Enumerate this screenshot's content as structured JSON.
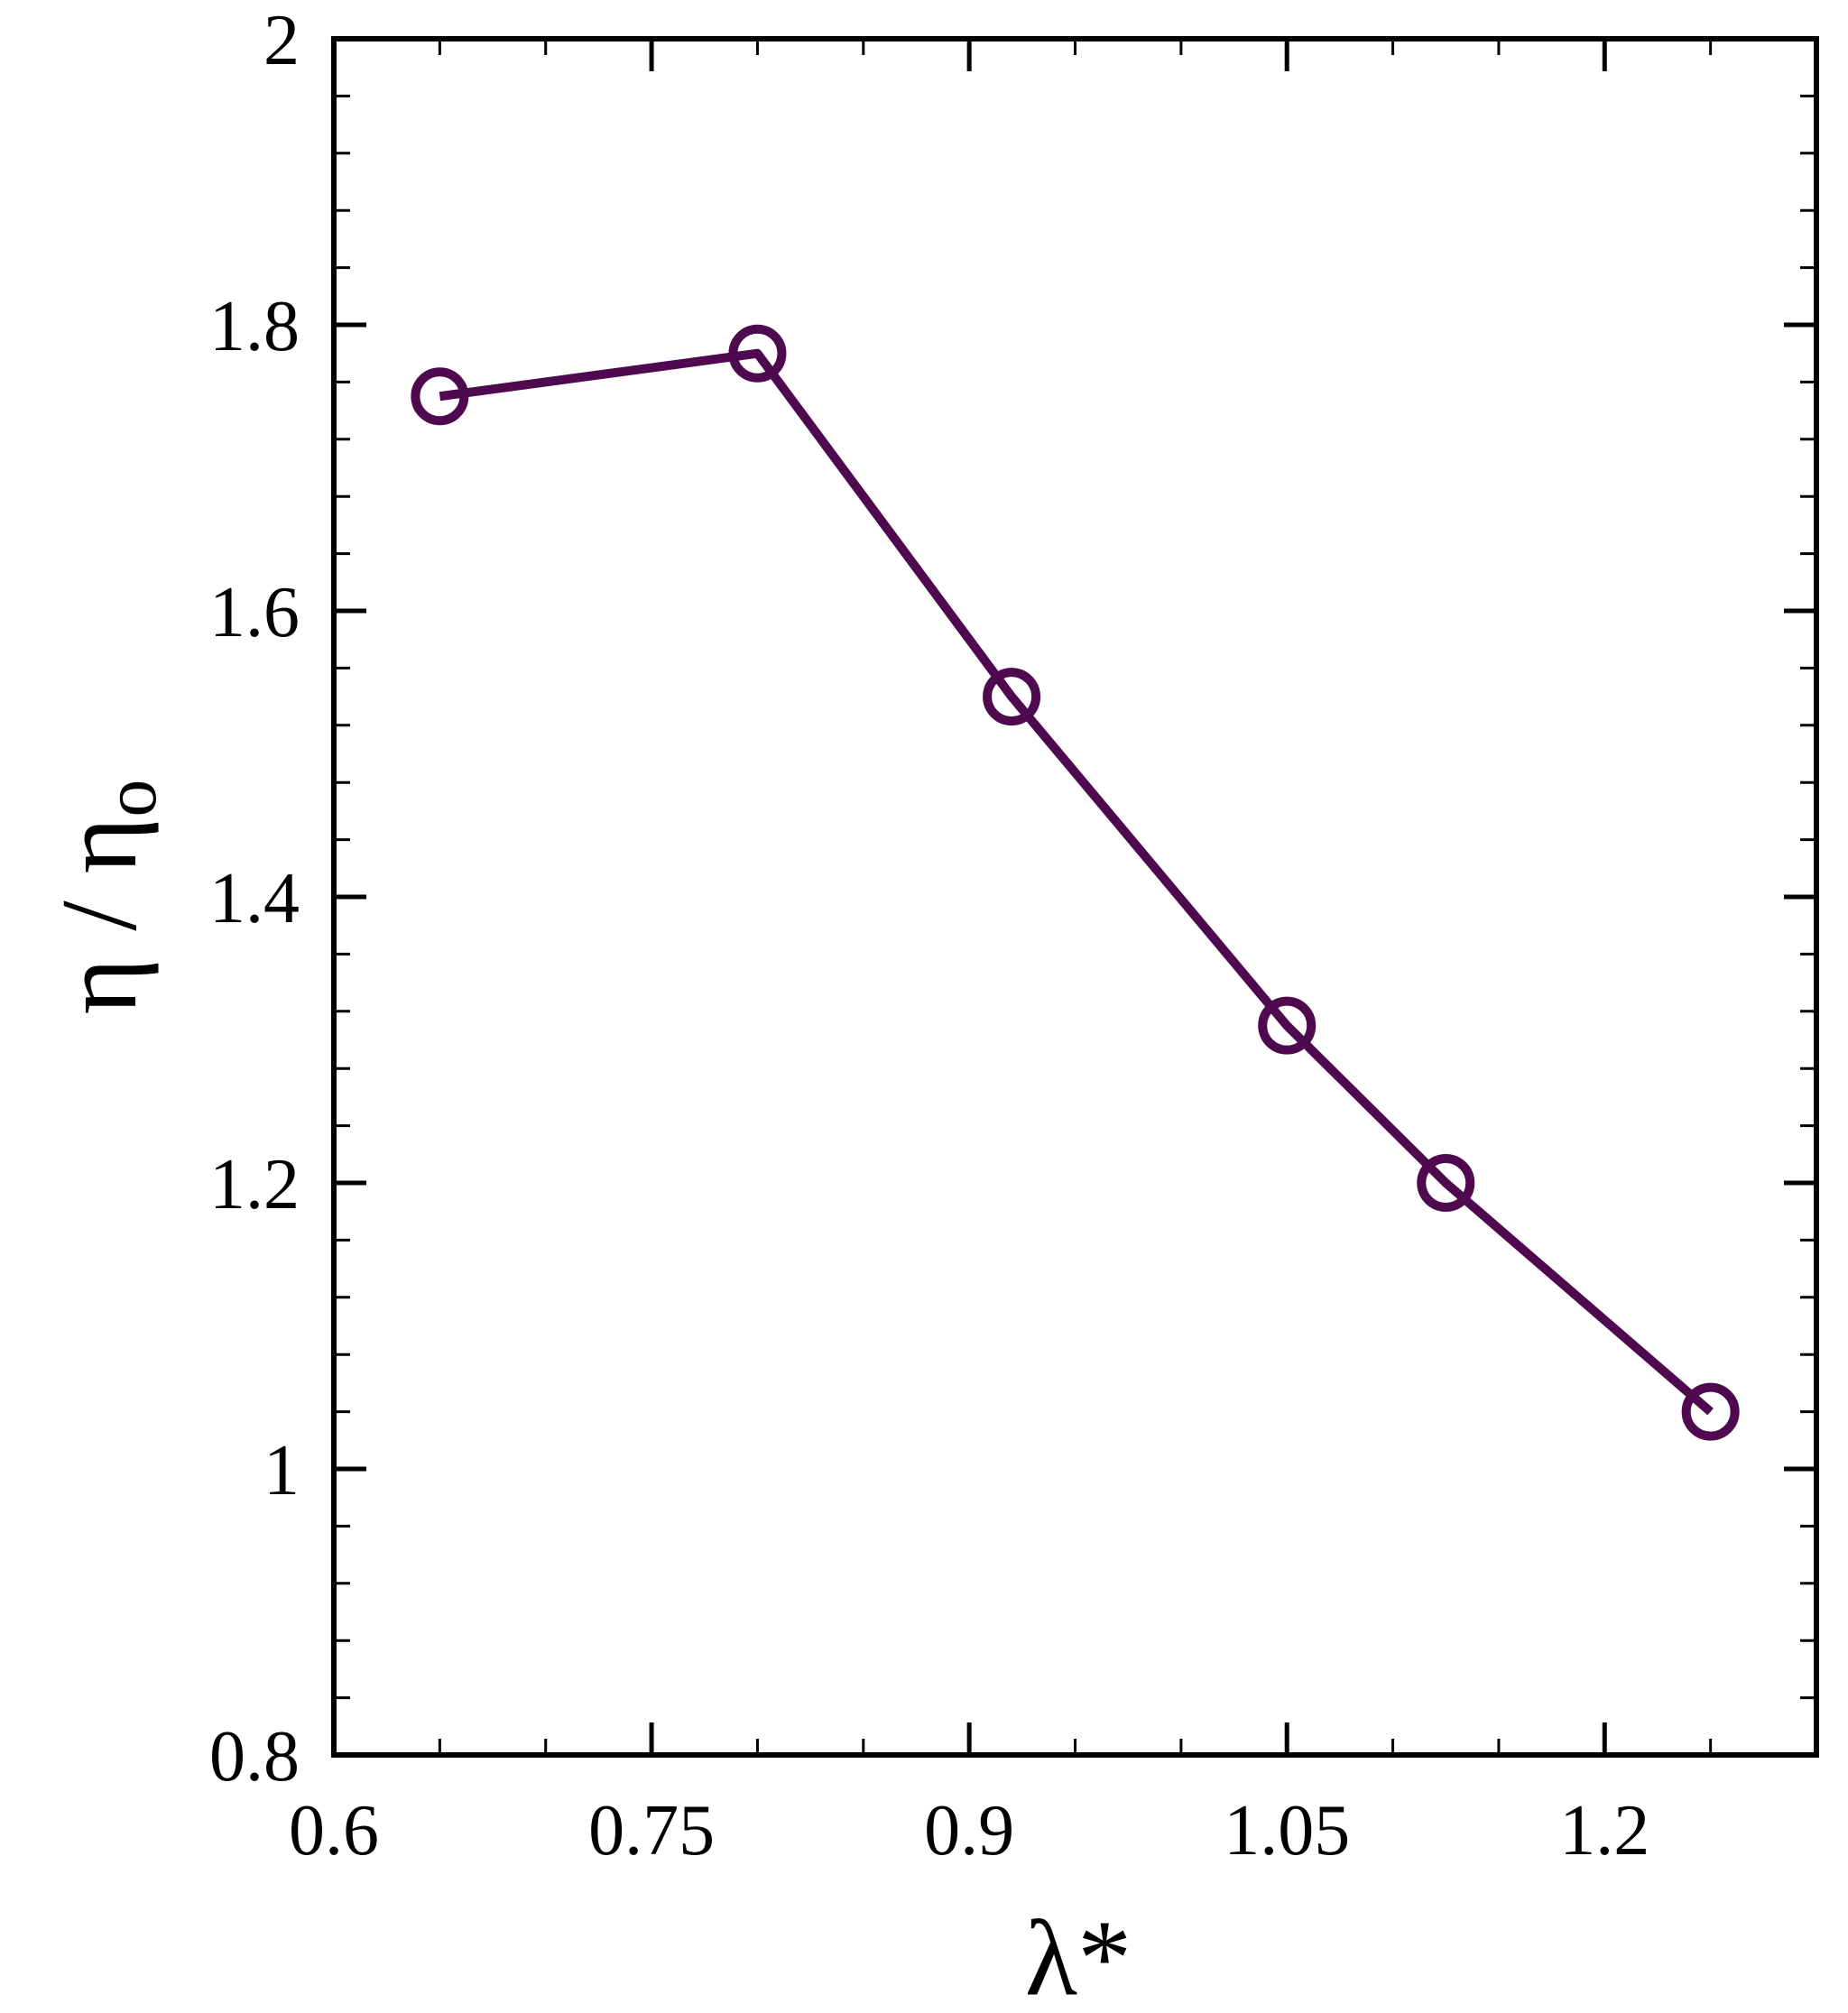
{
  "chart_data": {
    "type": "line",
    "xlabel": "λ*",
    "ylabel": {
      "main": "η / η",
      "subscript": "o"
    },
    "xlim": [
      0.6,
      1.3
    ],
    "ylim": [
      0.8,
      2.0
    ],
    "x_ticks": [
      0.6,
      0.75,
      0.9,
      1.05,
      1.2
    ],
    "x_tick_labels": [
      "0.6",
      "0.75",
      "0.9",
      "1.05",
      "1.2"
    ],
    "y_ticks": [
      0.8,
      1.0,
      1.2,
      1.4,
      1.6,
      1.8,
      2.0
    ],
    "y_tick_labels": [
      "0.8",
      "1",
      "1.2",
      "1.4",
      "1.6",
      "1.8",
      "2"
    ],
    "grid": false,
    "series": [
      {
        "color": "#4f0a4f",
        "marker": "open-circle",
        "x": [
          0.65,
          0.8,
          0.92,
          1.05,
          1.125,
          1.25
        ],
        "y": [
          1.75,
          1.78,
          1.54,
          1.31,
          1.2,
          1.04
        ]
      }
    ]
  }
}
